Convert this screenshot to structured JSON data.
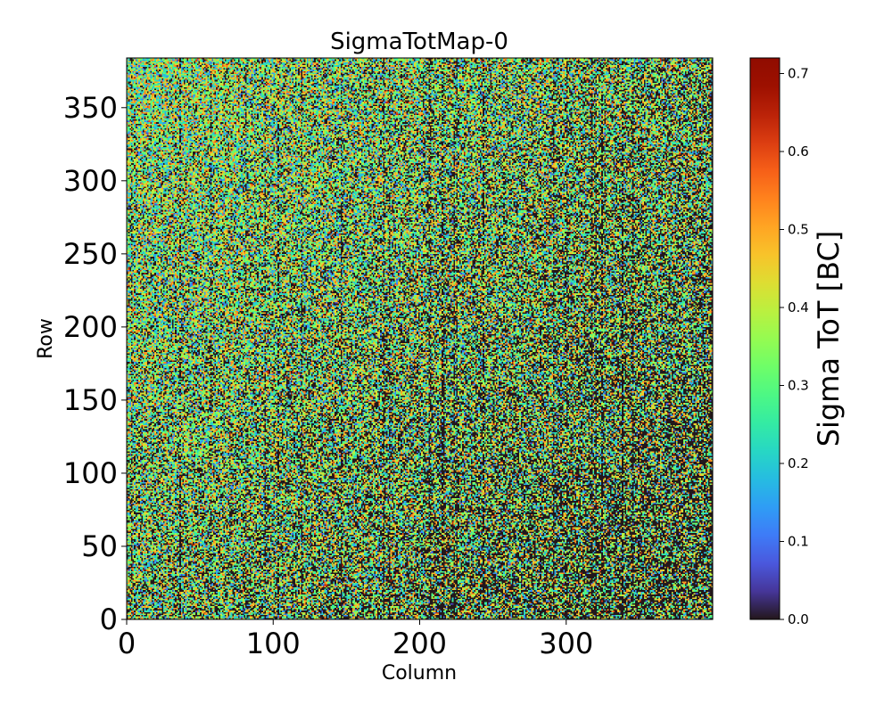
{
  "chart_data": {
    "type": "heatmap",
    "title": "SigmaTotMap-0",
    "xlabel": "Column",
    "ylabel": "Row",
    "xlim": [
      0,
      400
    ],
    "ylim": [
      0,
      384
    ],
    "grid_columns": 400,
    "grid_rows": 384,
    "xticks": [
      0,
      100,
      200,
      300
    ],
    "xtick_labels": [
      "0",
      "100",
      "200",
      "300"
    ],
    "yticks": [
      0,
      50,
      100,
      150,
      200,
      250,
      300,
      350
    ],
    "ytick_labels": [
      "0",
      "50",
      "100",
      "150",
      "200",
      "250",
      "300",
      "350"
    ],
    "colormap": "turbo",
    "colorbar": {
      "label": "Sigma ToT [BC]",
      "vmin": 0.0,
      "vmax": 0.72,
      "ticks": [
        0.0,
        0.1,
        0.2,
        0.3,
        0.4,
        0.5,
        0.6,
        0.7
      ],
      "tick_labels": [
        "0.0",
        "0.1",
        "0.2",
        "0.3",
        "0.4",
        "0.5",
        "0.6",
        "0.7"
      ]
    },
    "distribution": {
      "description_of_values": "noisy per-pixel sigma values; many pixels at 0.0 (dark), others mostly 0.2-0.5",
      "zero_fraction_bottom_right": 0.55,
      "zero_fraction_top_left": 0.12,
      "typical_nonzero_range": [
        0.15,
        0.55
      ]
    }
  }
}
